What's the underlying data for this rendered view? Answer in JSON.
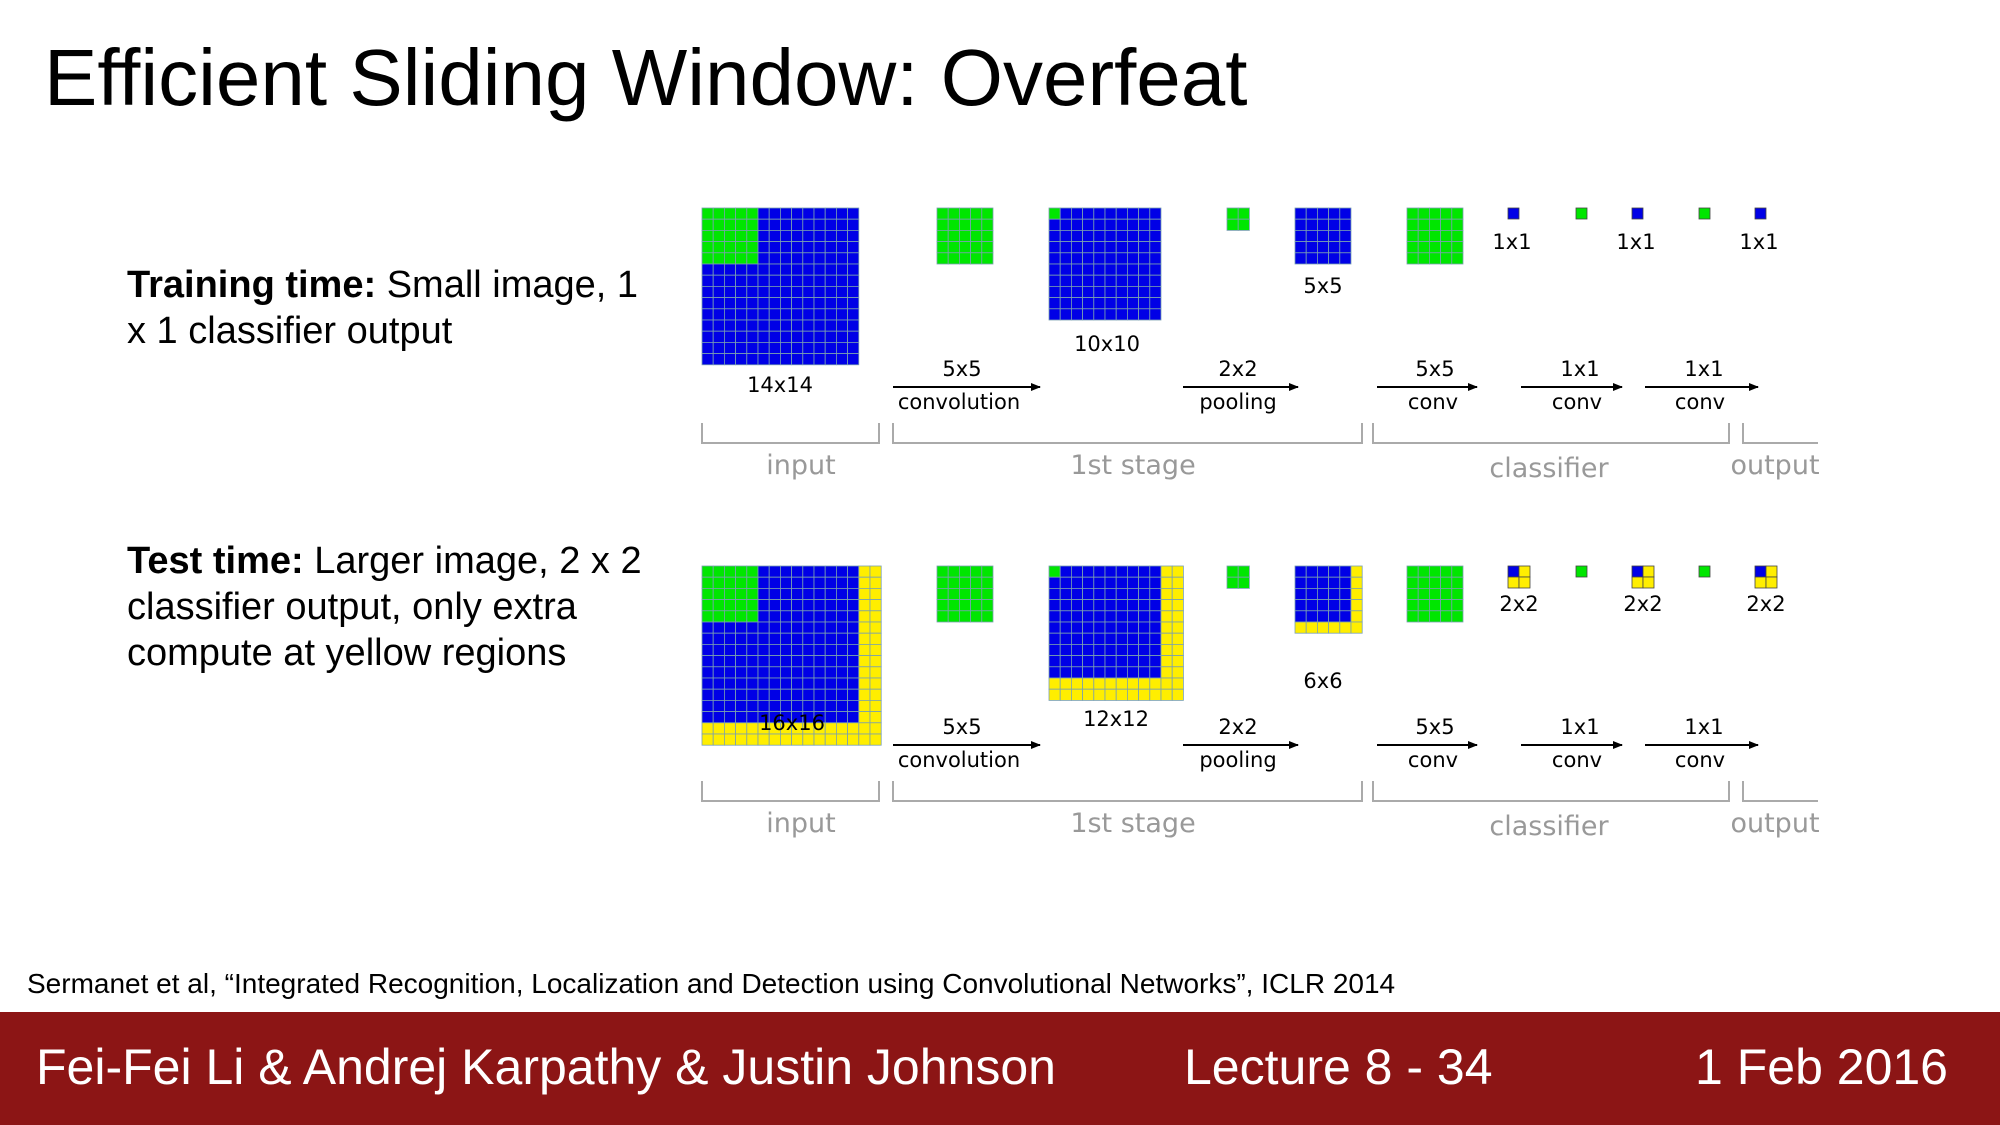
{
  "slide": {
    "title": "Efficient Sliding Window: Overfeat",
    "training": {
      "label": "Training time:",
      "text": " Small image, 1 x 1 classifier output"
    },
    "testing": {
      "label": "Test time:",
      "text": " Larger image, 2 x 2 classifier output, only extra compute at yellow regions"
    },
    "citation": "Sermanet et al, “Integrated Recognition, Localization and Detection using Convolutional Networks”, ICLR 2014"
  },
  "footer": {
    "authors": "Fei-Fei Li & Andrej Karpathy & Justin Johnson",
    "lecture": "Lecture 8 - 34",
    "date": "1 Feb 2016"
  },
  "colors": {
    "blue": "#0000e6",
    "green": "#00e600",
    "yellow": "#ffee00",
    "footer_bg": "#8c1515"
  },
  "diagram": {
    "rows": [
      {
        "id": "train",
        "input_size": "14x14",
        "conv1": {
          "top": "5x5",
          "bottom": "convolution"
        },
        "map1_size": "10x10",
        "pool": {
          "top": "2x2",
          "bottom": "pooling"
        },
        "map2_size": "5x5",
        "conv2": {
          "top": "5x5",
          "bottom": "conv"
        },
        "conv3": {
          "top": "1x1",
          "bottom": "conv"
        },
        "conv4": {
          "top": "1x1",
          "bottom": "conv"
        },
        "out_labels": [
          "1x1",
          "1x1",
          "1x1"
        ],
        "stages": [
          "input",
          "1st stage",
          "classifier",
          "output"
        ]
      },
      {
        "id": "test",
        "input_size": "16x16",
        "conv1": {
          "top": "5x5",
          "bottom": "convolution"
        },
        "map1_size": "12x12",
        "pool": {
          "top": "2x2",
          "bottom": "pooling"
        },
        "map2_size": "6x6",
        "conv2": {
          "top": "5x5",
          "bottom": "conv"
        },
        "conv3": {
          "top": "1x1",
          "bottom": "conv"
        },
        "conv4": {
          "top": "1x1",
          "bottom": "conv"
        },
        "out_labels": [
          "2x2",
          "2x2",
          "2x2"
        ],
        "stages": [
          "input",
          "1st stage",
          "classifier",
          "output"
        ]
      }
    ]
  }
}
